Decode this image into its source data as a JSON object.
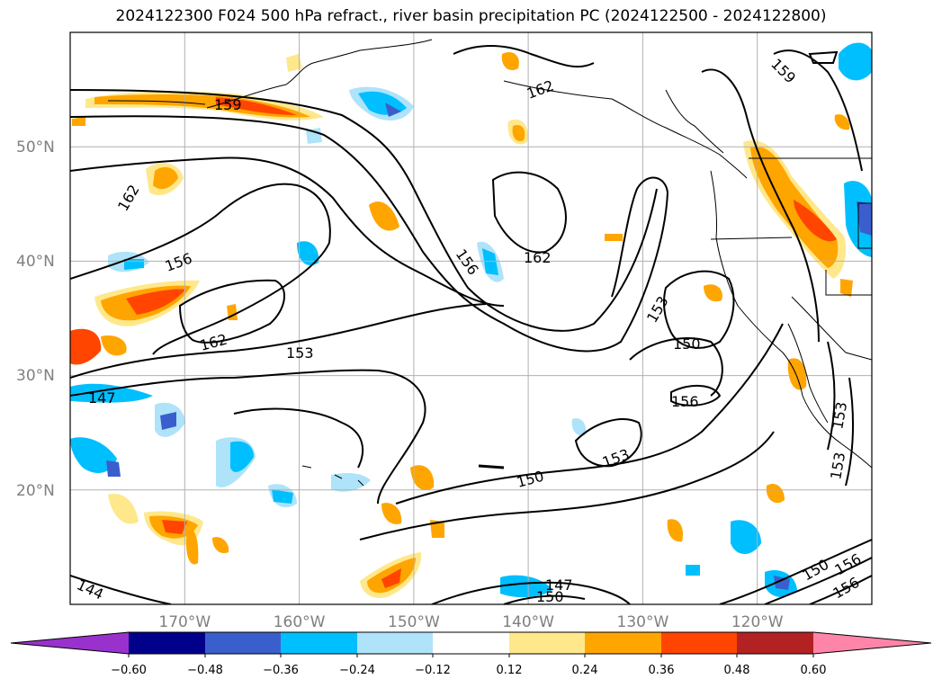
{
  "title": "2024122300 F024 500 hPa refract., river basin precipitation PC (2024122500 - 2024122800)",
  "map": {
    "lon_range": [
      -180,
      -110
    ],
    "lat_range": [
      10,
      60
    ],
    "lat_labels": [
      "50°N",
      "40°N",
      "30°N",
      "20°N"
    ],
    "lon_labels": [
      "170°W",
      "160°W",
      "150°W",
      "140°W",
      "130°W",
      "120°W"
    ],
    "gridlines": true,
    "contour_labels": [
      "159",
      "162",
      "162",
      "156",
      "156",
      "162",
      "159",
      "162",
      "153",
      "153",
      "150",
      "147",
      "156",
      "150",
      "153",
      "153",
      "153",
      "144",
      "147",
      "150",
      "150",
      "156",
      "156"
    ],
    "colors": {
      "land_outline": "#000000",
      "grid": "#b0b0b0",
      "contour": "#000000",
      "positive_light": "#ffe88c",
      "positive_mid": "#ffa500",
      "positive_strong": "#ff4500",
      "negative_light": "#aee3fa",
      "negative_mid": "#00bfff",
      "negative_strong": "#3a5fcd"
    }
  },
  "colorbar": {
    "tick_labels": [
      "−0.60",
      "−0.48",
      "−0.36",
      "−0.24",
      "−0.12",
      "0.12",
      "0.24",
      "0.36",
      "0.48",
      "0.60"
    ],
    "ticks": [
      -0.6,
      -0.48,
      -0.36,
      -0.24,
      -0.12,
      0.12,
      0.24,
      0.36,
      0.48,
      0.6
    ],
    "bins": [
      {
        "color": "#9932cc"
      },
      {
        "color": "#00008b"
      },
      {
        "color": "#3a5fcd"
      },
      {
        "color": "#00bfff"
      },
      {
        "color": "#aee3fa"
      },
      {
        "color": "#ffffff"
      },
      {
        "color": "#ffe88c"
      },
      {
        "color": "#ffa500"
      },
      {
        "color": "#ff4500"
      },
      {
        "color": "#b22222"
      },
      {
        "color": "#ff85a8"
      }
    ]
  }
}
